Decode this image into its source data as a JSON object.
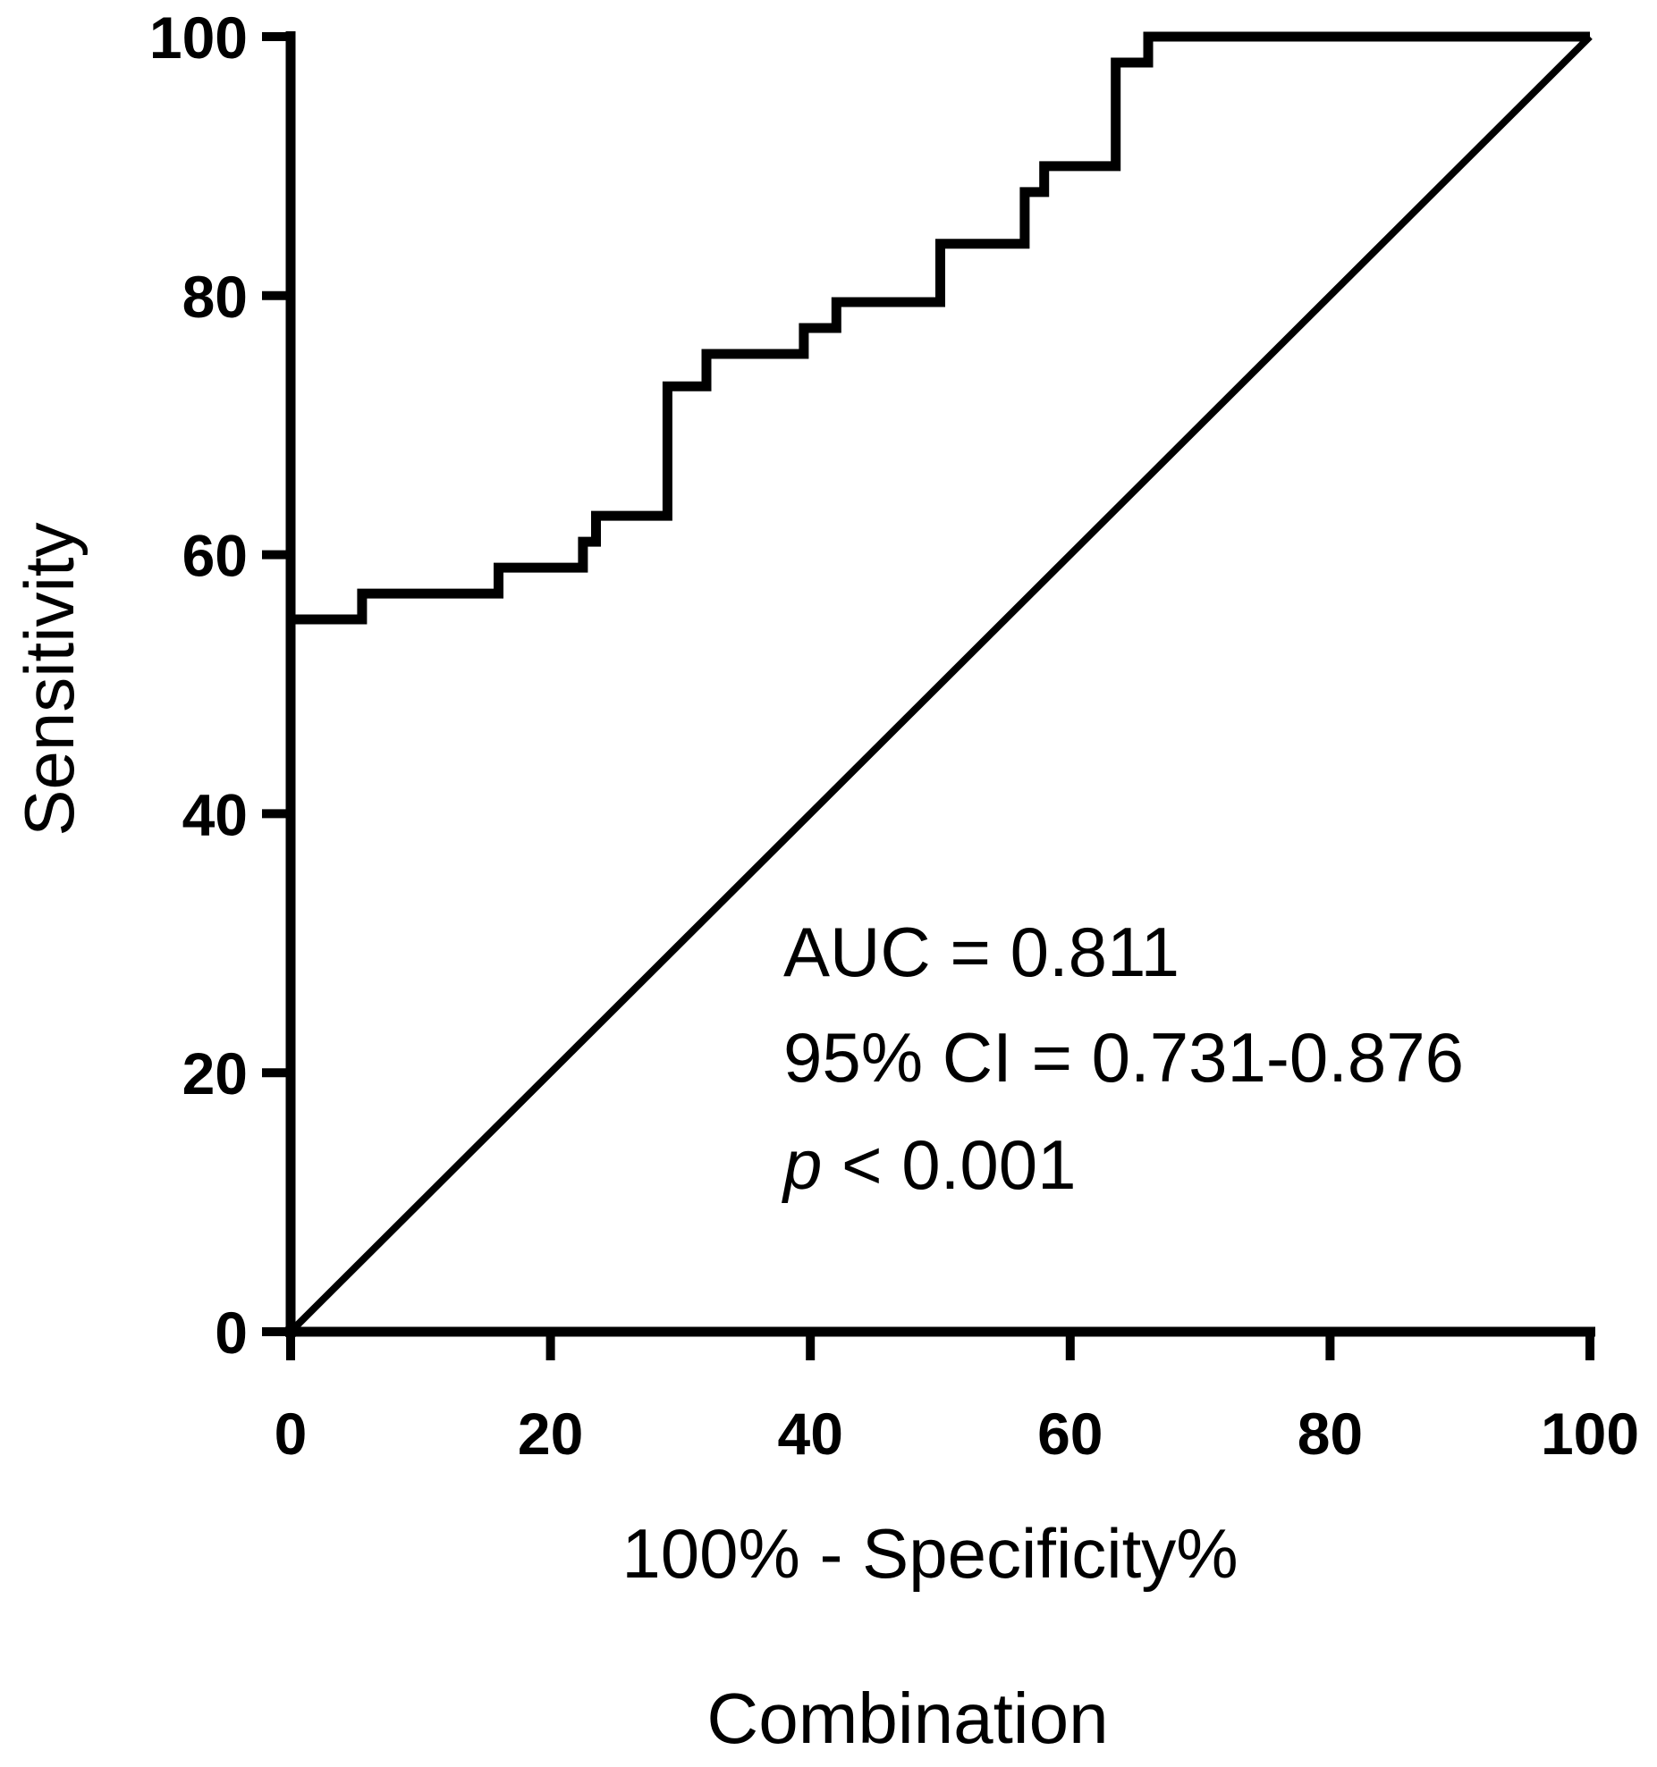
{
  "chart_data": {
    "type": "line",
    "xlabel": "100% - Specificity%",
    "ylabel": "Sensitivity",
    "caption": "Combination",
    "xlim": [
      0,
      100
    ],
    "ylim": [
      0,
      100
    ],
    "x_ticks": [
      "0",
      "20",
      "40",
      "60",
      "80",
      "100"
    ],
    "y_ticks": [
      "0",
      "20",
      "40",
      "60",
      "80",
      "100"
    ],
    "grid": false,
    "legend": "none",
    "annotation": {
      "auc": "AUC = 0.811",
      "ci": "95% CI = 0.731-0.876",
      "p_symbol": "p",
      "p_rest": " < 0.001"
    },
    "series": [
      {
        "role": "roc-curve",
        "style": "step",
        "x": [
          0,
          0,
          5.5,
          5.5,
          16,
          16,
          22.5,
          22.5,
          23.5,
          23.5,
          29,
          29,
          32,
          32,
          39.5,
          39.5,
          42,
          42,
          50,
          50,
          56.5,
          56.5,
          58,
          58,
          63.5,
          63.5,
          66,
          66,
          100
        ],
        "y": [
          0,
          55,
          55,
          57,
          57,
          59,
          59,
          61,
          61,
          63,
          63,
          73,
          73,
          75.5,
          75.5,
          77.5,
          77.5,
          79.5,
          79.5,
          84,
          84,
          88,
          88,
          90,
          90,
          98,
          98,
          100,
          100
        ]
      },
      {
        "role": "reference-line",
        "style": "diagonal",
        "x": [
          0,
          100
        ],
        "y": [
          0,
          100
        ]
      }
    ],
    "color": "#000000"
  }
}
